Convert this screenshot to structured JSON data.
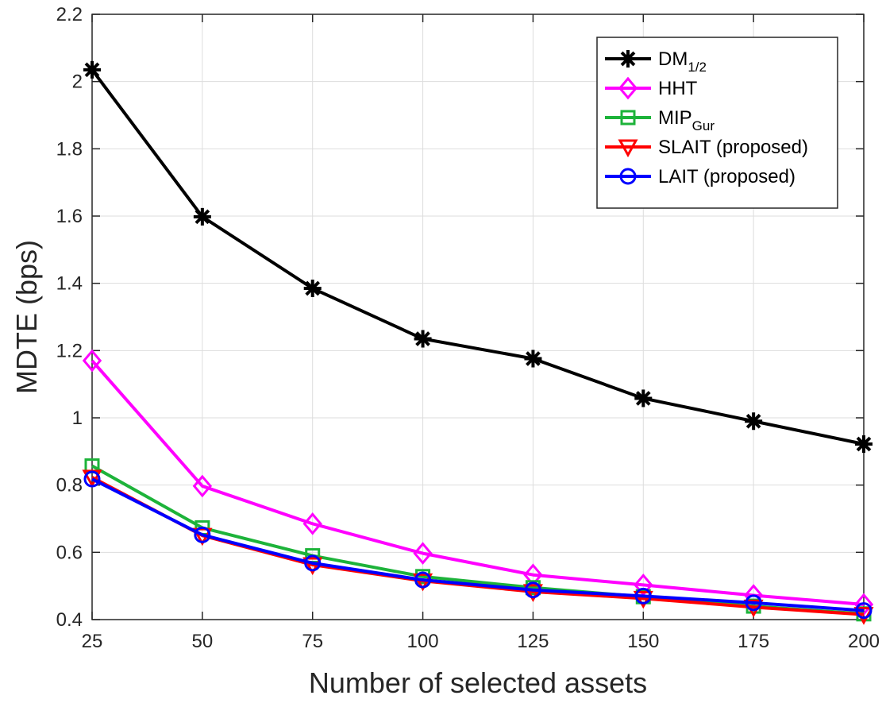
{
  "chart_data": {
    "type": "line",
    "xlabel": "Number of selected assets",
    "ylabel": "MDTE (bps)",
    "x": [
      25,
      50,
      75,
      100,
      125,
      150,
      175,
      200
    ],
    "xlim": [
      25,
      200
    ],
    "ylim": [
      0.4,
      2.2
    ],
    "xticks": [
      "25",
      "50",
      "75",
      "100",
      "125",
      "150",
      "175",
      "200"
    ],
    "yticks": [
      "0.4",
      "0.6",
      "0.8",
      "1",
      "1.2",
      "1.4",
      "1.6",
      "1.8",
      "2",
      "2.2"
    ],
    "grid": true,
    "legend_position": "top-right",
    "series": [
      {
        "name": "DM",
        "subscript": "1/2",
        "color": "#000000",
        "marker": "asterisk",
        "values": [
          2.035,
          1.598,
          1.385,
          1.235,
          1.176,
          1.058,
          0.99,
          0.922
        ]
      },
      {
        "name": "HHT",
        "subscript": "",
        "color": "#ff00ff",
        "marker": "diamond",
        "values": [
          1.17,
          0.797,
          0.685,
          0.597,
          0.533,
          0.503,
          0.472,
          0.445
        ]
      },
      {
        "name": "MIP",
        "subscript": "Gur",
        "color": "#1db33a",
        "marker": "square",
        "values": [
          0.857,
          0.673,
          0.59,
          0.528,
          0.495,
          0.468,
          0.44,
          0.417
        ]
      },
      {
        "name": "SLAIT (proposed)",
        "subscript": "",
        "color": "#ff0000",
        "marker": "triangle-down",
        "values": [
          0.823,
          0.65,
          0.563,
          0.515,
          0.483,
          0.463,
          0.437,
          0.415
        ]
      },
      {
        "name": "LAIT (proposed)",
        "subscript": "",
        "color": "#0000ff",
        "marker": "circle",
        "values": [
          0.818,
          0.652,
          0.568,
          0.518,
          0.488,
          0.47,
          0.45,
          0.427
        ]
      }
    ]
  }
}
